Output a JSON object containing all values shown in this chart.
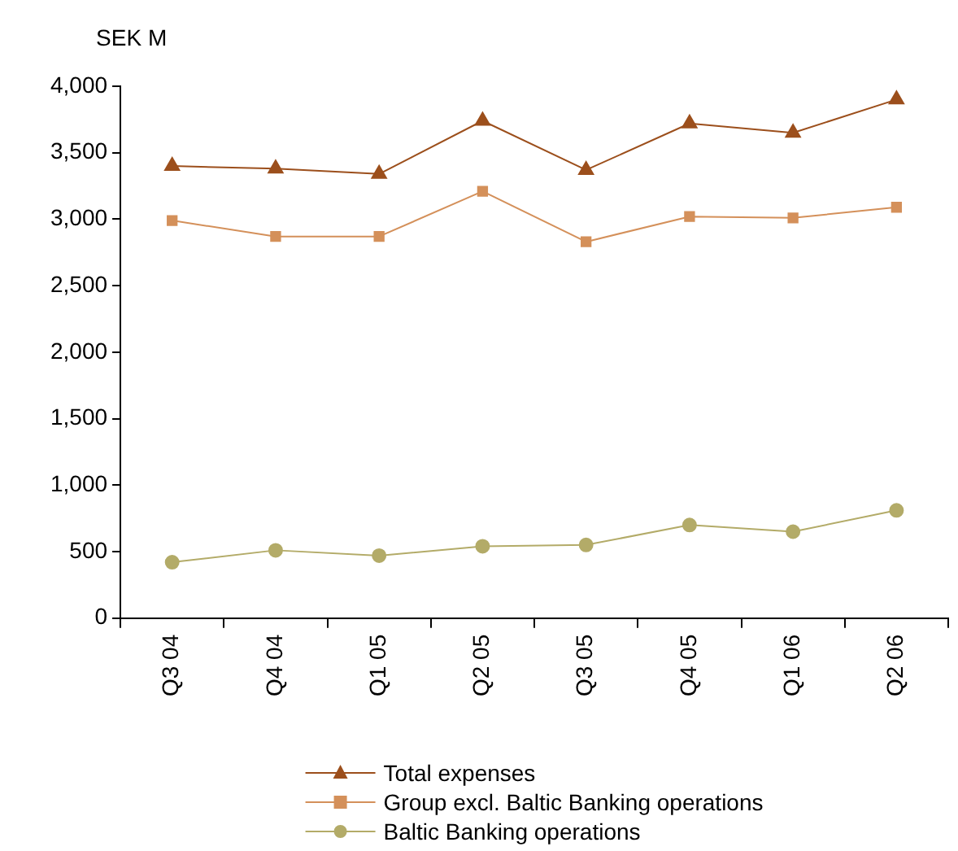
{
  "chart_data": {
    "type": "line",
    "ylabel": "SEK M",
    "categories": [
      "Q3 04",
      "Q4 04",
      "Q1 05",
      "Q2 05",
      "Q3 05",
      "Q4 05",
      "Q1 06",
      "Q2 06"
    ],
    "series": [
      {
        "name": "Total expenses",
        "color": "#9c4f1c",
        "marker": "triangle",
        "values": [
          3400,
          3380,
          3340,
          3740,
          3370,
          3720,
          3650,
          3900
        ]
      },
      {
        "name": "Group excl. Baltic Banking operations",
        "color": "#d4905a",
        "marker": "square",
        "values": [
          2990,
          2870,
          2870,
          3210,
          2830,
          3020,
          3010,
          3090
        ]
      },
      {
        "name": "Baltic Banking operations",
        "color": "#b3ab68",
        "marker": "circle",
        "values": [
          420,
          510,
          470,
          540,
          550,
          700,
          650,
          810
        ]
      }
    ],
    "ylim": [
      0,
      4000
    ],
    "yticks": [
      0,
      500,
      {
        "value": 1000,
        "label": "1,000"
      },
      {
        "value": 1500,
        "label": "1,500"
      },
      {
        "value": 2000,
        "label": "2,000"
      },
      {
        "value": 2500,
        "label": "2,500"
      },
      {
        "value": 3000,
        "label": "3,000"
      },
      {
        "value": 3500,
        "label": "3,500"
      },
      {
        "value": 4000,
        "label": "4,000"
      }
    ],
    "legend": "bottom"
  }
}
